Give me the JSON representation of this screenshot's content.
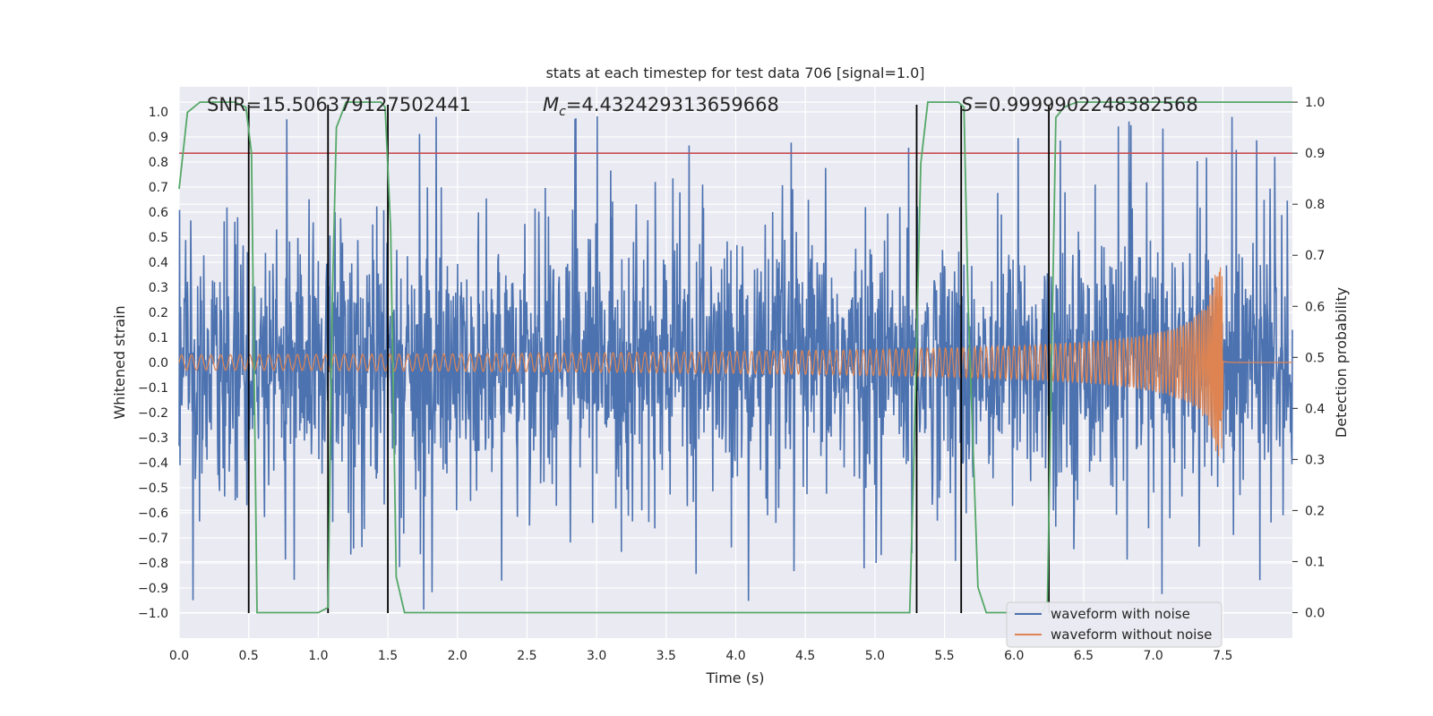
{
  "chart_data": {
    "type": "line",
    "title": "stats at each timestep for test data 706 [signal=1.0]",
    "xlabel": "Time (s)",
    "ylabel": "Whitened strain",
    "y2label": "Detection probability",
    "xlim": [
      0.0,
      8.0
    ],
    "ylim": [
      -1.1,
      1.1
    ],
    "y2lim": [
      -0.05,
      1.03
    ],
    "x_ticks": [
      "0.0",
      "0.5",
      "1.0",
      "1.5",
      "2.0",
      "2.5",
      "3.0",
      "3.5",
      "4.0",
      "4.5",
      "5.0",
      "5.5",
      "6.0",
      "6.5",
      "7.0",
      "7.5"
    ],
    "y_ticks": [
      "1.0",
      "0.9",
      "0.8",
      "0.7",
      "0.6",
      "0.5",
      "0.4",
      "0.3",
      "0.2",
      "0.1",
      "0.0",
      "−0.1",
      "−0.2",
      "−0.3",
      "−0.4",
      "−0.5",
      "−0.6",
      "−0.7",
      "−0.8",
      "−0.9",
      "−1.0"
    ],
    "y2_ticks": [
      "1.0",
      "0.9",
      "0.8",
      "0.7",
      "0.6",
      "0.5",
      "0.4",
      "0.3",
      "0.2",
      "0.1",
      "0.0"
    ],
    "annotations": {
      "snr": "SNR=15.506379127502441",
      "mc_symbol": "M",
      "mc_sub": "c",
      "mc_value": "=4.432429313659668",
      "s_symbol": "S",
      "s_value": "=0.9999902248382568"
    },
    "threshold": {
      "y": 0.9,
      "axis": "right",
      "color": "#c44e52"
    },
    "vertical_lines": [
      0.5,
      1.07,
      1.5,
      5.3,
      5.62,
      6.25
    ],
    "series": [
      {
        "name": "waveform with noise",
        "color": "#4c72b0",
        "kind": "noise",
        "amplitude_typical": 0.45,
        "peak": 1.0,
        "x_range": [
          0.0,
          8.0
        ]
      },
      {
        "name": "waveform without noise",
        "color": "#dd8452",
        "kind": "chirp",
        "amplitude_start": 0.03,
        "amplitude_peak": 0.38,
        "merger_time": 7.5,
        "x_range": [
          0.0,
          8.0
        ]
      },
      {
        "name": "detection probability",
        "color": "#55a868",
        "axis": "right",
        "x": [
          0.0,
          0.06,
          0.15,
          0.4,
          0.48,
          0.52,
          0.56,
          1.0,
          1.07,
          1.1,
          1.13,
          1.2,
          1.3,
          1.45,
          1.48,
          1.52,
          1.56,
          1.62,
          5.0,
          5.2,
          5.25,
          5.28,
          5.33,
          5.38,
          5.42,
          5.6,
          5.64,
          5.67,
          5.74,
          5.8,
          6.2,
          6.24,
          6.27,
          6.3,
          6.36,
          6.45,
          8.0
        ],
        "y": [
          0.83,
          0.98,
          1.0,
          1.0,
          0.99,
          0.9,
          0.0,
          0.0,
          0.01,
          0.6,
          0.95,
          1.0,
          1.0,
          1.0,
          0.99,
          0.75,
          0.07,
          0.0,
          0.0,
          0.0,
          0.0,
          0.3,
          0.88,
          1.0,
          1.0,
          1.0,
          0.99,
          0.6,
          0.05,
          0.0,
          0.0,
          0.02,
          0.5,
          0.97,
          0.99,
          1.0,
          1.0
        ]
      }
    ],
    "legend": {
      "position": "lower-right",
      "entries": [
        "waveform with noise",
        "waveform without noise"
      ]
    },
    "grid": true,
    "background": "#eaeaf2"
  }
}
